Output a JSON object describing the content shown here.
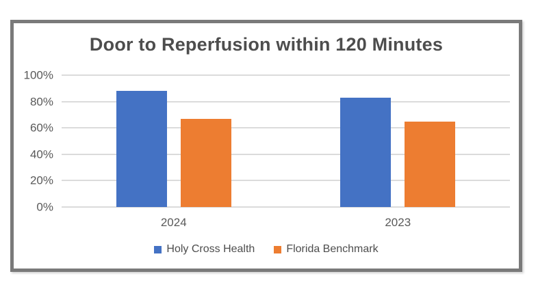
{
  "chart_data": {
    "type": "bar",
    "title": "Door to Reperfusion within 120 Minutes",
    "categories": [
      "2024",
      "2023"
    ],
    "series": [
      {
        "name": "Holy Cross Health",
        "color": "#4472C4",
        "values": [
          88,
          83
        ]
      },
      {
        "name": "Florida Benchmark",
        "color": "#ED7D31",
        "values": [
          67,
          65
        ]
      }
    ],
    "xlabel": "",
    "ylabel": "",
    "ylim": [
      0,
      100
    ],
    "yticks": [
      {
        "value": 0,
        "label": "0%"
      },
      {
        "value": 20,
        "label": "20%"
      },
      {
        "value": 40,
        "label": "40%"
      },
      {
        "value": 60,
        "label": "60%"
      },
      {
        "value": 80,
        "label": "80%"
      },
      {
        "value": 100,
        "label": "100%"
      }
    ],
    "grid": true,
    "legend_position": "bottom",
    "colors": {
      "gridline": "#DBDBDB",
      "axis_text": "#595959",
      "title_text": "#4D4D4D",
      "frame_border": "#7A7A7A",
      "background": "#FFFFFF"
    }
  }
}
